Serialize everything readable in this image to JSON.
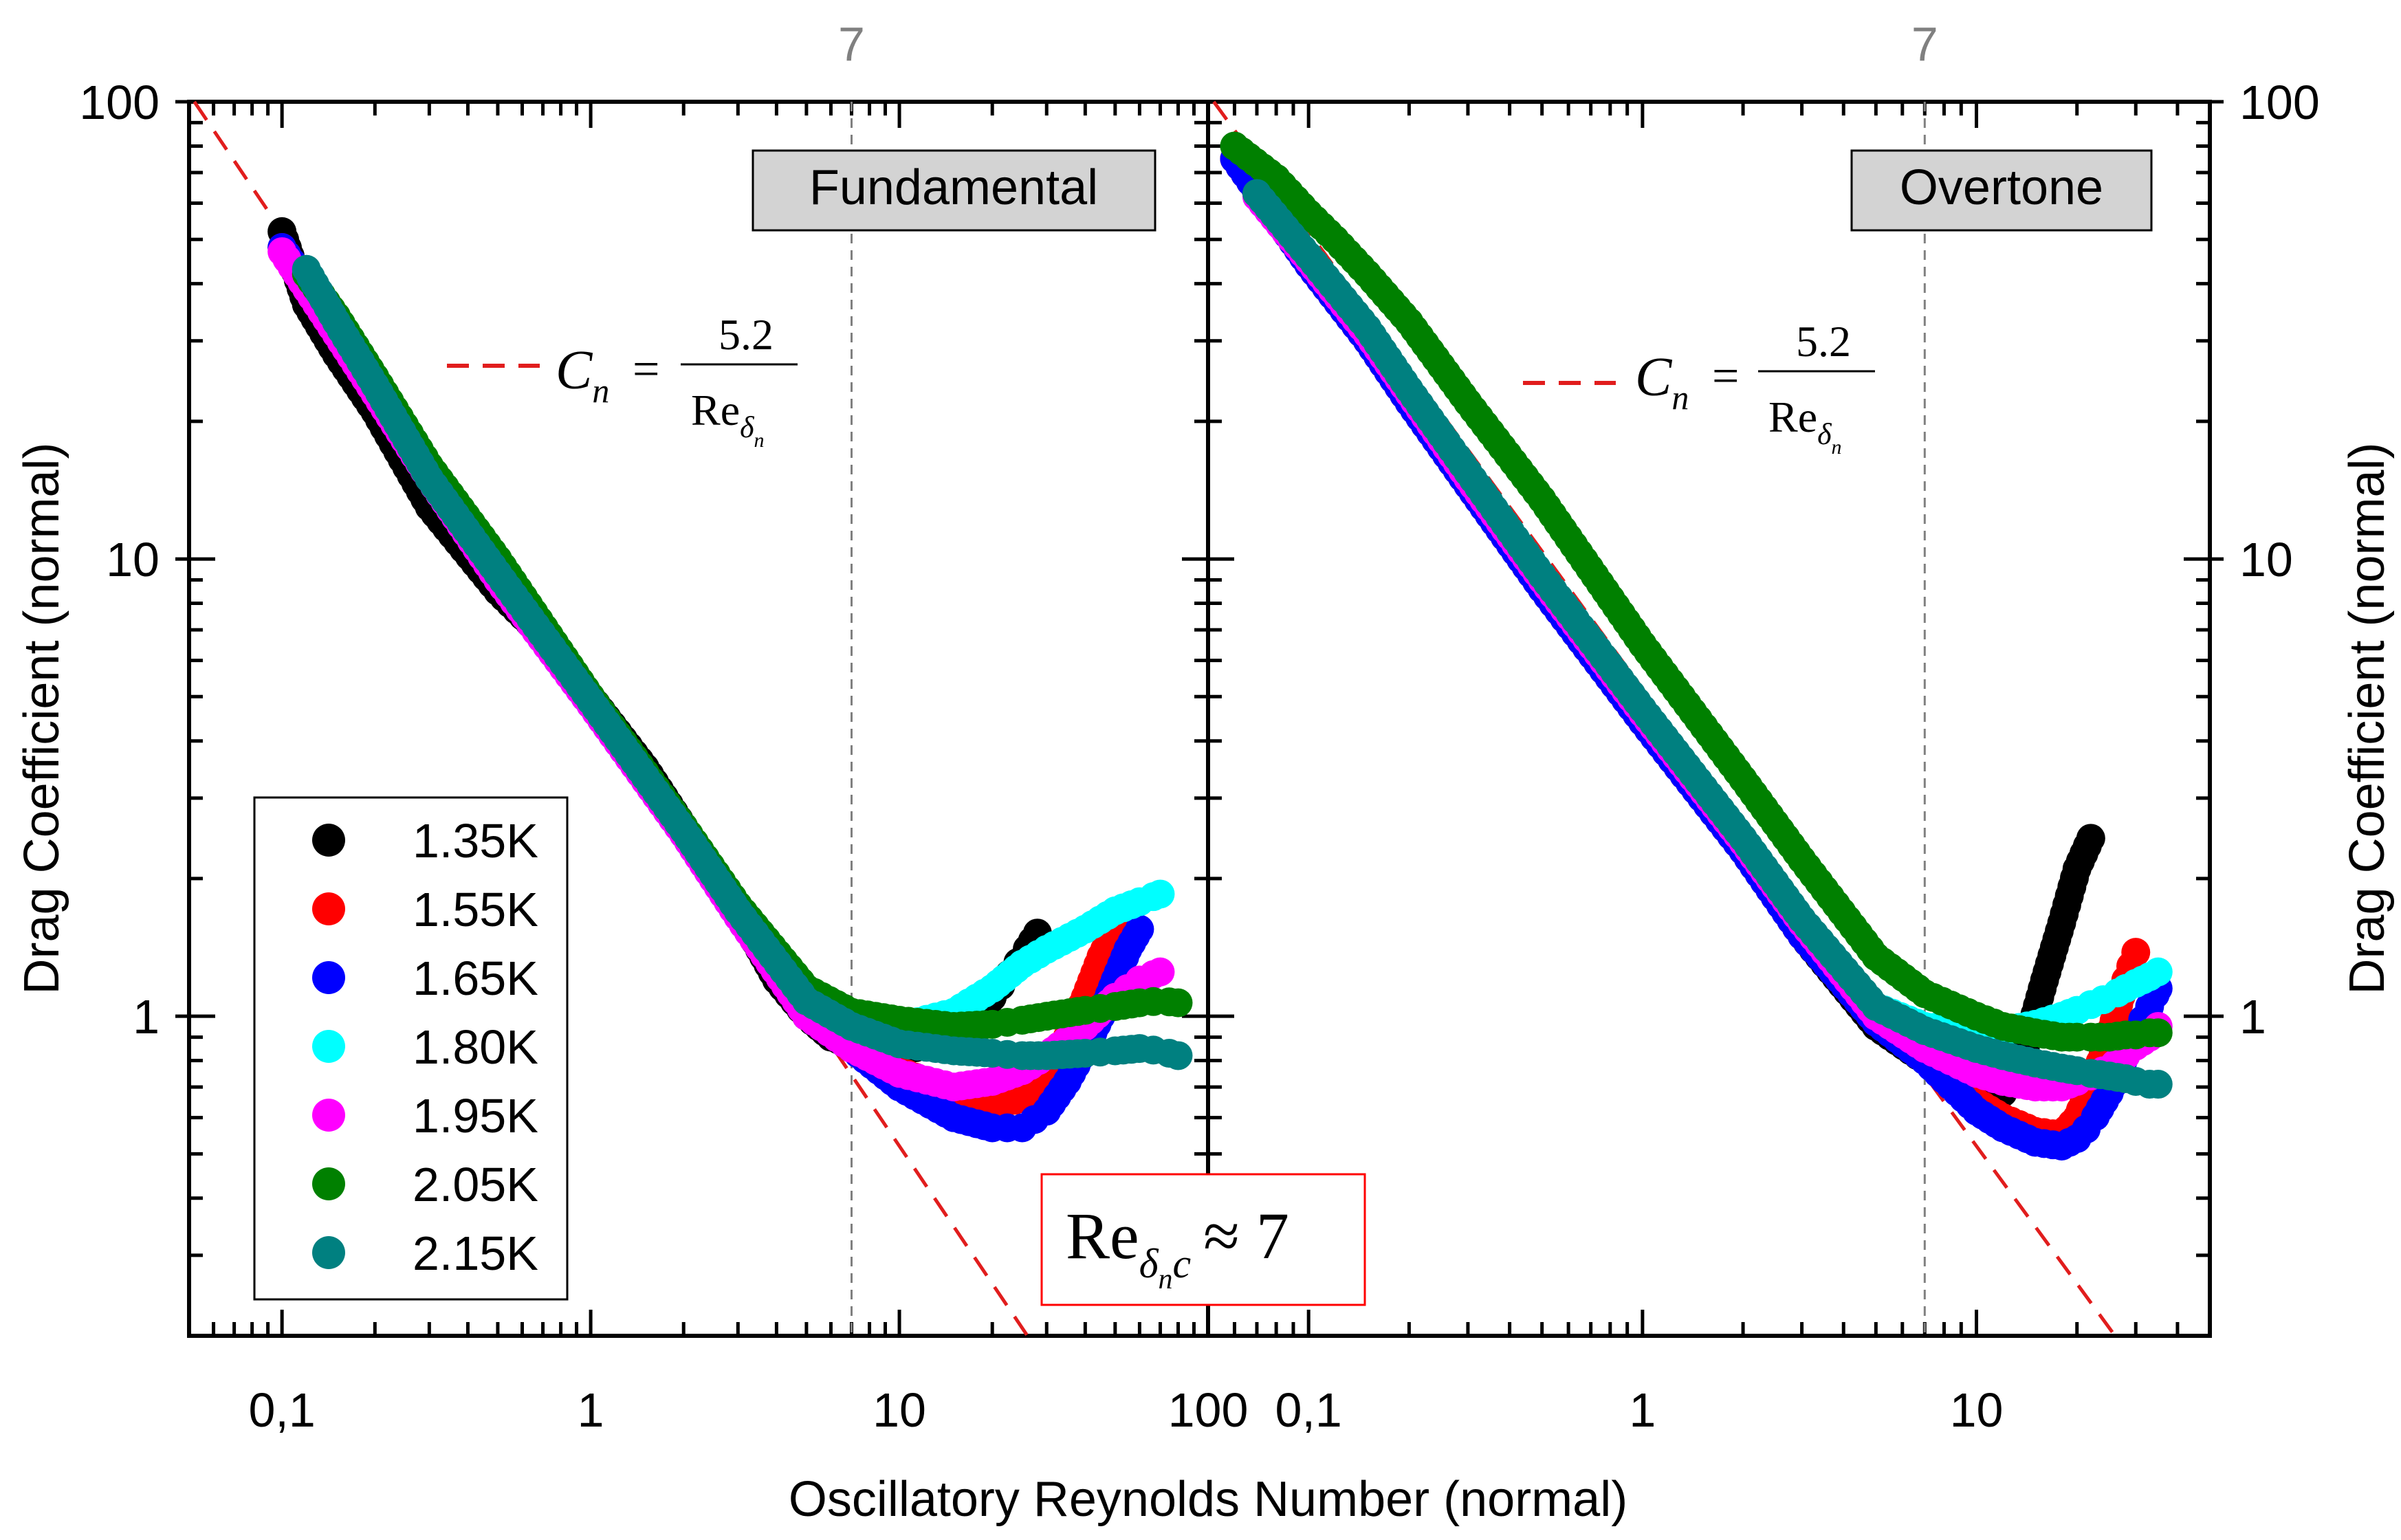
{
  "chart_data": {
    "type": "scatter",
    "x_label": "Oscillatory Reynolds Number (normal)",
    "y_label": "Drag Coefficient (normal)",
    "scale": "log-log",
    "ylim": [
      0.2,
      100
    ],
    "y_tick_labels": [
      "1",
      "10",
      "100"
    ],
    "critical_re": 7,
    "critical_label": "7",
    "model": {
      "name": "C_n = 5.2 / Re_δn",
      "coefficient": 5.2,
      "color": "#e11d1d"
    },
    "model_label": {
      "c": "C",
      "n": "n",
      "eq": "=",
      "num": "5.2",
      "den": "Re",
      "sub": "δ",
      "subsub": "n"
    },
    "critical_box": {
      "re": "Re",
      "sub": "δ",
      "subsub": "n",
      "c": "c",
      "approx": "≈ 7"
    },
    "legend": [
      {
        "label": "1.35K",
        "color": "#000000"
      },
      {
        "label": "1.55K",
        "color": "#ff0000"
      },
      {
        "label": "1.65K",
        "color": "#0000ff"
      },
      {
        "label": "1.80K",
        "color": "#00ffff"
      },
      {
        "label": "1.95K",
        "color": "#ff00ff"
      },
      {
        "label": "2.05K",
        "color": "#008000"
      },
      {
        "label": "2.15K",
        "color": "#008080"
      }
    ],
    "panels": [
      {
        "title": "Fundamental",
        "xlim": [
          0.05,
          100
        ],
        "x_tick_labels": [
          "0,1",
          "1",
          "10",
          "100"
        ],
        "series": [
          {
            "name": "1.35K",
            "color": "#000000",
            "x": [
              0.1,
              0.12,
              0.15,
              0.2,
              0.3,
              0.5,
              0.8,
              1,
              1.5,
              2,
              3,
              4,
              5,
              6,
              8,
              10,
              12,
              15,
              18,
              20,
              22,
              25,
              28
            ],
            "y": [
              52,
              36,
              28,
              21,
              13,
              8.5,
              6.2,
              5,
              3.5,
              2.6,
              1.7,
              1.2,
              1.0,
              0.9,
              0.84,
              0.84,
              0.86,
              0.92,
              1.0,
              1.1,
              1.2,
              1.35,
              1.52
            ]
          },
          {
            "name": "1.55K",
            "color": "#ff0000",
            "x": [
              0.1,
              0.15,
              0.2,
              0.3,
              0.5,
              1,
              2,
              3,
              5,
              7,
              10,
              15,
              20,
              25,
              30,
              35,
              40,
              45,
              50
            ],
            "y": [
              48,
              32,
              23,
              15,
              9,
              4.8,
              2.5,
              1.65,
              1.0,
              0.88,
              0.76,
              0.68,
              0.64,
              0.66,
              0.75,
              0.9,
              1.1,
              1.35,
              1.55
            ]
          },
          {
            "name": "1.65K",
            "color": "#0000ff",
            "x": [
              0.1,
              0.15,
              0.2,
              0.3,
              0.5,
              1,
              2,
              3,
              5,
              7,
              10,
              15,
              20,
              25,
              30,
              35,
              40,
              45,
              50,
              55,
              60
            ],
            "y": [
              48,
              32,
              23,
              15,
              9,
              4.8,
              2.5,
              1.65,
              1.0,
              0.85,
              0.7,
              0.6,
              0.57,
              0.57,
              0.62,
              0.72,
              0.85,
              1.0,
              1.2,
              1.4,
              1.55
            ]
          },
          {
            "name": "1.80K",
            "color": "#00ffff",
            "x": [
              0.12,
              0.2,
              0.3,
              0.5,
              1,
              2,
              3,
              5,
              7,
              10,
              15,
              20,
              25,
              30,
              40,
              50,
              60,
              70
            ],
            "y": [
              42,
              24,
              15,
              9,
              4.8,
              2.5,
              1.65,
              1.05,
              0.95,
              0.95,
              1.02,
              1.15,
              1.3,
              1.4,
              1.55,
              1.7,
              1.78,
              1.85
            ]
          },
          {
            "name": "1.95K",
            "color": "#ff00ff",
            "x": [
              0.1,
              0.15,
              0.2,
              0.3,
              0.5,
              1,
              2,
              3,
              5,
              7,
              10,
              15,
              20,
              25,
              30,
              40,
              50,
              60,
              70
            ],
            "y": [
              47,
              31,
              23,
              15,
              9,
              4.8,
              2.5,
              1.65,
              1.0,
              0.85,
              0.75,
              0.7,
              0.72,
              0.76,
              0.82,
              0.95,
              1.1,
              1.2,
              1.25
            ]
          },
          {
            "name": "2.05K",
            "color": "#008000",
            "x": [
              0.12,
              0.15,
              0.2,
              0.3,
              0.5,
              1,
              2,
              3,
              5,
              7,
              10,
              15,
              20,
              25,
              30,
              40,
              50,
              60,
              70,
              80
            ],
            "y": [
              42,
              34,
              25,
              16,
              10,
              5,
              2.6,
              1.75,
              1.15,
              1.02,
              0.98,
              0.95,
              0.96,
              0.98,
              1.0,
              1.03,
              1.05,
              1.07,
              1.08,
              1.07
            ]
          },
          {
            "name": "2.15K",
            "color": "#008080",
            "x": [
              0.12,
              0.15,
              0.2,
              0.3,
              0.5,
              1,
              2,
              3,
              5,
              7,
              10,
              15,
              20,
              25,
              30,
              40,
              50,
              60,
              70,
              80
            ],
            "y": [
              43,
              33,
              24,
              15,
              9.3,
              4.9,
              2.55,
              1.7,
              1.08,
              0.95,
              0.87,
              0.84,
              0.83,
              0.82,
              0.82,
              0.83,
              0.84,
              0.85,
              0.84,
              0.82
            ]
          }
        ]
      },
      {
        "title": "Overtone",
        "xlim": [
          0.05,
          50
        ],
        "x_tick_labels": [
          "0,1",
          "1",
          "10"
        ],
        "series": [
          {
            "name": "1.35K",
            "color": "#000000",
            "x": [
              0.06,
              0.08,
              0.1,
              0.15,
              0.2,
              0.3,
              0.5,
              1,
              2,
              3,
              5,
              7,
              10,
              12,
              14,
              16,
              18,
              20,
              22
            ],
            "y": [
              75,
              58,
              44,
              30,
              22,
              14.5,
              8.6,
              4.4,
              2.3,
              1.5,
              0.95,
              0.8,
              0.7,
              0.68,
              0.85,
              1.2,
              1.6,
              2.1,
              2.45
            ]
          },
          {
            "name": "1.55K",
            "color": "#ff0000",
            "x": [
              0.06,
              0.1,
              0.15,
              0.2,
              0.3,
              0.5,
              1,
              2,
              3,
              5,
              7,
              10,
              12,
              15,
              18,
              20,
              22,
              25,
              28,
              30
            ],
            "y": [
              75,
              44,
              30,
              22,
              14.5,
              8.6,
              4.4,
              2.3,
              1.5,
              0.97,
              0.82,
              0.65,
              0.6,
              0.56,
              0.55,
              0.6,
              0.7,
              0.9,
              1.2,
              1.38
            ]
          },
          {
            "name": "1.65K",
            "color": "#0000ff",
            "x": [
              0.06,
              0.1,
              0.15,
              0.2,
              0.3,
              0.5,
              1,
              2,
              3,
              5,
              7,
              10,
              12,
              15,
              18,
              20,
              22,
              25,
              28,
              30,
              33,
              35
            ],
            "y": [
              75,
              44,
              30,
              22,
              14.5,
              8.6,
              4.4,
              2.3,
              1.5,
              0.97,
              0.8,
              0.62,
              0.57,
              0.53,
              0.52,
              0.54,
              0.58,
              0.68,
              0.82,
              0.92,
              1.05,
              1.15
            ]
          },
          {
            "name": "1.80K",
            "color": "#00ffff",
            "x": [
              0.07,
              0.1,
              0.15,
              0.2,
              0.3,
              0.5,
              1,
              2,
              3,
              5,
              7,
              10,
              12,
              15,
              18,
              20,
              22,
              25,
              28,
              30,
              33,
              35
            ],
            "y": [
              62,
              45,
              31,
              23,
              15,
              9,
              4.6,
              2.4,
              1.6,
              1.05,
              0.95,
              0.92,
              0.93,
              0.96,
              1.0,
              1.03,
              1.06,
              1.1,
              1.15,
              1.18,
              1.22,
              1.25
            ]
          },
          {
            "name": "1.95K",
            "color": "#ff00ff",
            "x": [
              0.07,
              0.1,
              0.15,
              0.2,
              0.3,
              0.5,
              1,
              2,
              3,
              5,
              7,
              10,
              12,
              15,
              18,
              20,
              22,
              25,
              28,
              30,
              33,
              35
            ],
            "y": [
              62,
              45,
              31,
              23,
              15,
              9,
              4.6,
              2.4,
              1.6,
              1.0,
              0.85,
              0.75,
              0.72,
              0.7,
              0.7,
              0.72,
              0.74,
              0.77,
              0.82,
              0.86,
              0.9,
              0.95
            ]
          },
          {
            "name": "2.05K",
            "color": "#008000",
            "x": [
              0.06,
              0.08,
              0.1,
              0.12,
              0.15,
              0.2,
              0.3,
              0.5,
              1,
              2,
              3,
              5,
              7,
              10,
              12,
              15,
              18,
              20,
              22,
              25,
              28,
              30,
              33,
              35
            ],
            "y": [
              80,
              68,
              57,
              50,
              42,
              33,
              22,
              13.5,
              6.5,
              3.3,
              2.2,
              1.35,
              1.12,
              1.0,
              0.95,
              0.92,
              0.9,
              0.9,
              0.9,
              0.9,
              0.91,
              0.91,
              0.92,
              0.92
            ]
          },
          {
            "name": "2.15K",
            "color": "#008080",
            "x": [
              0.07,
              0.1,
              0.15,
              0.2,
              0.3,
              0.5,
              1,
              2,
              3,
              5,
              7,
              10,
              12,
              15,
              18,
              20,
              22,
              25,
              28,
              30,
              33,
              35
            ],
            "y": [
              63,
              46,
              32,
              23.5,
              15.5,
              9.2,
              4.7,
              2.45,
              1.63,
              1.05,
              0.93,
              0.85,
              0.82,
              0.79,
              0.77,
              0.76,
              0.75,
              0.74,
              0.73,
              0.72,
              0.71,
              0.71
            ]
          }
        ]
      }
    ]
  }
}
